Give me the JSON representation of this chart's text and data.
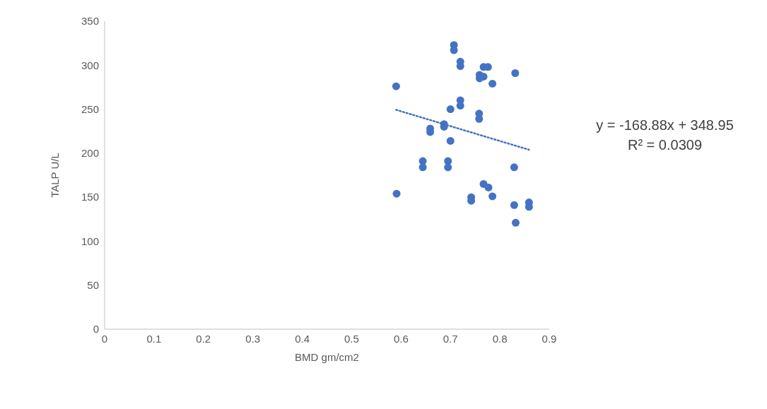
{
  "chart_data": {
    "type": "scatter",
    "xlabel": "BMD gm/cm2",
    "ylabel": "TALP U/L",
    "xlim": [
      0,
      0.9
    ],
    "xticks": [
      0,
      0.1,
      0.2,
      0.3,
      0.4,
      0.5,
      0.6,
      0.7,
      0.8,
      0.9
    ],
    "ylim": [
      0,
      350
    ],
    "yticks": [
      0,
      50,
      100,
      150,
      200,
      250,
      300,
      350
    ],
    "grid": false,
    "legend": false,
    "marker": "circle",
    "series": [
      {
        "color": "#4472c4",
        "x": [
          0.59,
          0.707,
          0.707,
          0.72,
          0.72,
          0.767,
          0.776,
          0.759,
          0.759,
          0.767,
          0.785,
          0.831,
          0.72,
          0.72,
          0.7,
          0.758,
          0.758,
          0.687,
          0.687,
          0.659,
          0.659,
          0.7,
          0.644,
          0.644,
          0.695,
          0.695,
          0.829,
          0.591,
          0.767,
          0.777,
          0.785,
          0.742,
          0.742,
          0.829,
          0.859,
          0.859,
          0.832
        ],
        "values": [
          276,
          323,
          317,
          304,
          299,
          298,
          298,
          289,
          285,
          287,
          279,
          291,
          260,
          254,
          250,
          245,
          239,
          233,
          230,
          228,
          224,
          214,
          191,
          184,
          191,
          184,
          184,
          154,
          165,
          161,
          151,
          150,
          146,
          141,
          144,
          139,
          121
        ]
      },
      {
        "type": "line",
        "color": "#4472c4",
        "line_style": "dotted",
        "marker": "none",
        "x": [
          0.59,
          0.859
        ],
        "values": [
          249.3,
          203.9
        ]
      }
    ],
    "annotations": [
      "y = -168.88x + 348.95",
      "R² = 0.0309"
    ]
  }
}
